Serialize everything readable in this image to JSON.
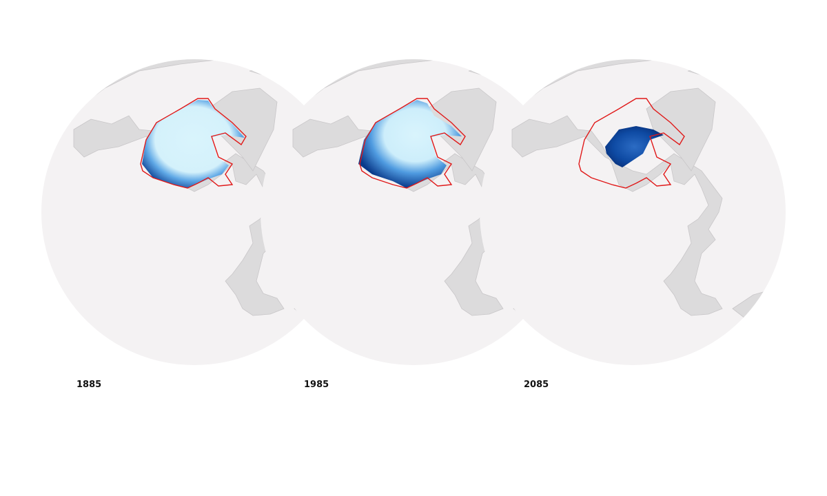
{
  "panels": [
    {
      "label": "1885"
    },
    {
      "label": "1985"
    },
    {
      "label": "2085"
    }
  ]
}
